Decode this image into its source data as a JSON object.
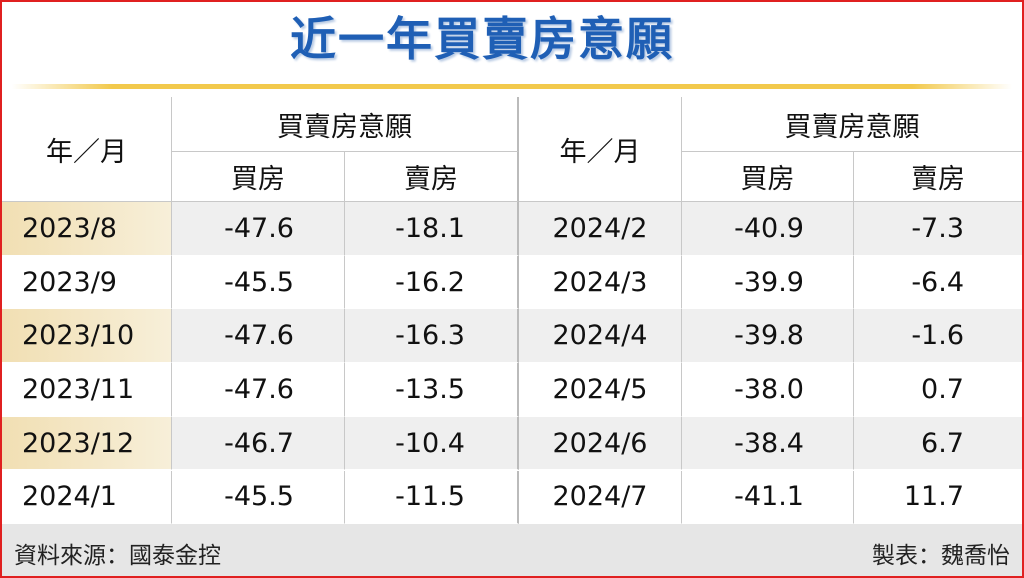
{
  "title": "近一年買賣房意願",
  "table": {
    "header": [
      [
        "年／月",
        "買賣房意願",
        "買房",
        "賣房"
      ],
      [
        "年／月",
        "買賣房意願",
        "買房",
        "賣房"
      ]
    ],
    "rows": [
      [
        "2023/8",
        "-47.6",
        "-18.1",
        "2024/2",
        "-40.9",
        "-7.3"
      ],
      [
        "2023/9",
        "-45.5",
        "-16.2",
        "2024/3",
        "-39.9",
        "-6.4"
      ],
      [
        "2023/10",
        "-47.6",
        "-16.3",
        "2024/4",
        "-39.8",
        "-1.6"
      ],
      [
        "2023/11",
        "-47.6",
        "-13.5",
        "2024/5",
        "-38.0",
        "0.7"
      ],
      [
        "2023/12",
        "-46.7",
        "-10.4",
        "2024/6",
        "-38.4",
        "6.7"
      ],
      [
        "2024/1",
        "-45.5",
        "-11.5",
        "2024/7",
        "-41.1",
        "11.7"
      ]
    ]
  },
  "footer": {
    "source": "資料來源：國泰金控",
    "credit": "製表：魏喬怡"
  }
}
